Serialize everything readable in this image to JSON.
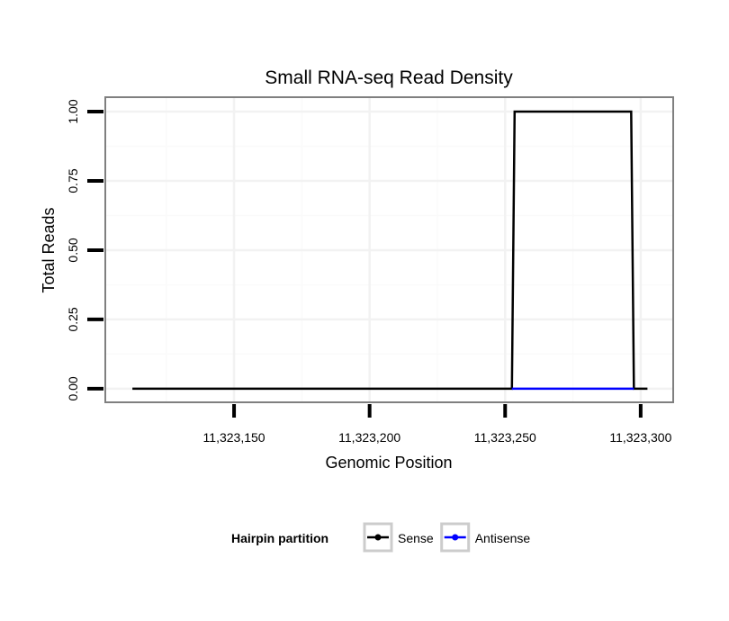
{
  "chart_data": {
    "type": "line",
    "title": "Small RNA-seq Read Density",
    "xlabel": "Genomic Position",
    "ylabel": "Total Reads",
    "xlim": [
      11323102.5,
      11323312
    ],
    "ylim": [
      -0.049,
      1.052
    ],
    "xticks": [
      11323150,
      11323200,
      11323250,
      11323300
    ],
    "xtick_labels": [
      "11,323,150",
      "11,323,200",
      "11,323,250",
      "11,323,300"
    ],
    "yticks": [
      0,
      0.25,
      0.5,
      0.75,
      1
    ],
    "ytick_labels": [
      "0.00",
      "0.25",
      "0.50",
      "0.75",
      "1.00"
    ],
    "grid": true,
    "legend": {
      "title": "Hairpin partition",
      "placement": "bottom"
    },
    "series": [
      {
        "name": "Sense",
        "color": "#000000",
        "x": [
          11323112.5,
          11323252.5,
          11323253.5,
          11323296.5,
          11323297.5,
          11323302.5
        ],
        "y": [
          0,
          0,
          1,
          1,
          0,
          0
        ]
      },
      {
        "name": "Antisense",
        "color": "#0000ff",
        "x": [
          11323252.5,
          11323297.5
        ],
        "y": [
          0,
          0
        ]
      }
    ]
  }
}
